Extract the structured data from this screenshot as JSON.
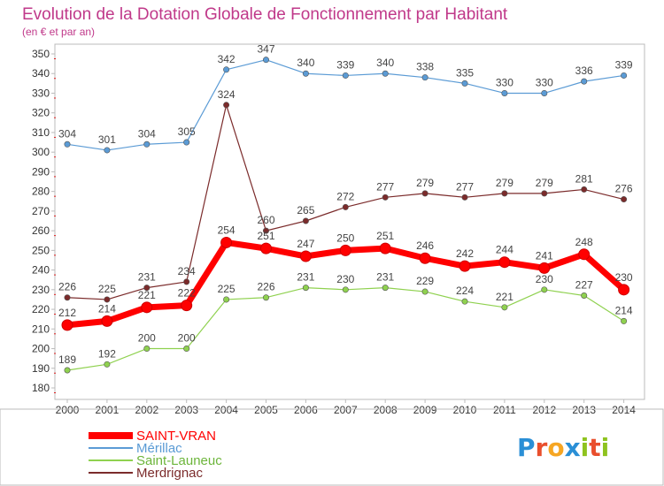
{
  "chart_data": {
    "type": "line",
    "title": "Evolution de la Dotation Globale de Fonctionnement par Habitant",
    "subtitle": "(en € et par an)",
    "xlabel": "",
    "ylabel": "",
    "x": [
      "2000",
      "2001",
      "2002",
      "2003",
      "2004",
      "2005",
      "2006",
      "2007",
      "2008",
      "2009",
      "2010",
      "2011",
      "2012",
      "2013",
      "2014"
    ],
    "ylim": [
      180,
      350
    ],
    "yticks": [
      180,
      190,
      200,
      210,
      220,
      230,
      240,
      250,
      260,
      270,
      280,
      290,
      300,
      310,
      320,
      330,
      340,
      350
    ],
    "grid": false,
    "legend_position": "bottom-left",
    "series": [
      {
        "name": "SAINT-VRAN",
        "color": "#ff0000",
        "values": [
          212,
          214,
          221,
          222,
          254,
          251,
          247,
          250,
          251,
          246,
          242,
          244,
          241,
          248,
          230
        ]
      },
      {
        "name": "Mérillac",
        "color": "#5b9bd5",
        "values": [
          304,
          301,
          304,
          305,
          342,
          347,
          340,
          339,
          340,
          338,
          335,
          330,
          330,
          336,
          339
        ]
      },
      {
        "name": "Saint-Launeuc",
        "color": "#8fd14f",
        "values": [
          189,
          192,
          200,
          200,
          225,
          226,
          231,
          230,
          231,
          229,
          224,
          221,
          230,
          227,
          214
        ]
      },
      {
        "name": "Merdrignac",
        "color": "#7b2b2b",
        "values": [
          226,
          225,
          231,
          234,
          324,
          260,
          265,
          272,
          277,
          279,
          277,
          279,
          279,
          281,
          276
        ]
      }
    ]
  },
  "brand": {
    "text": "Proxiti",
    "letters": [
      "P",
      "r",
      "o",
      "x",
      "i",
      "t",
      "i"
    ],
    "colors": [
      "#2a8fd6",
      "#e94f2d",
      "#f6a623",
      "#2a8fd6",
      "#8fc31f",
      "#e94f2d",
      "#8fc31f"
    ]
  }
}
